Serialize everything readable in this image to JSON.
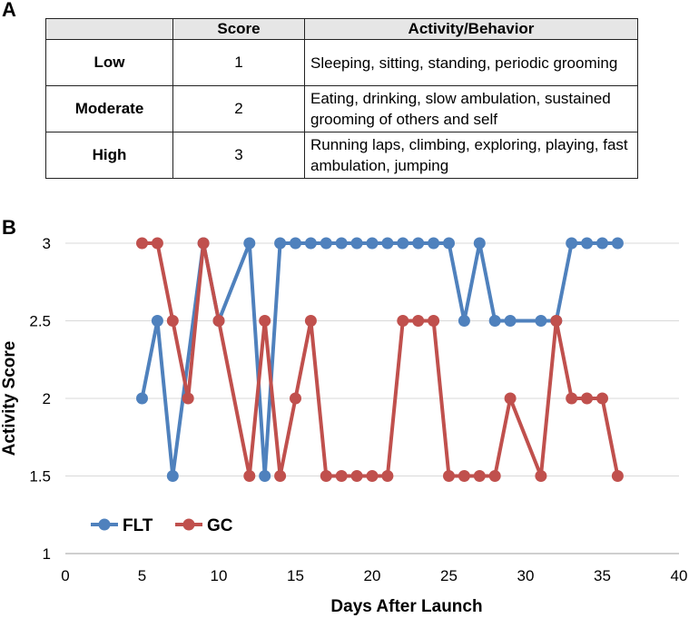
{
  "panel_a_label": "A",
  "panel_b_label": "B",
  "table": {
    "headers": [
      "",
      "Score",
      "Activity/Behavior"
    ],
    "rows": [
      {
        "level": "Low",
        "score": "1",
        "activity": "Sleeping, sitting, standing, periodic grooming"
      },
      {
        "level": "Moderate",
        "score": "2",
        "activity": "Eating, drinking, slow ambulation, sustained grooming of others and self"
      },
      {
        "level": "High",
        "score": "3",
        "activity": "Running laps, climbing, exploring, playing, fast ambulation, jumping"
      }
    ]
  },
  "chart_data": {
    "type": "line",
    "title": "",
    "xlabel": "Days After Launch",
    "ylabel": "Activity Score",
    "xlim": [
      0,
      40
    ],
    "ylim": [
      1,
      3
    ],
    "xticks": [
      0,
      5,
      10,
      15,
      20,
      25,
      30,
      35,
      40
    ],
    "yticks": [
      1,
      1.5,
      2,
      2.5,
      3
    ],
    "grid": "horizontal",
    "legend": "bottom-left",
    "series": [
      {
        "name": "FLT",
        "color": "#4f81bd",
        "x": [
          5,
          6,
          7,
          9,
          10,
          12,
          13,
          14,
          15,
          16,
          17,
          18,
          19,
          20,
          21,
          22,
          23,
          24,
          25,
          26,
          27,
          28,
          29,
          31,
          32,
          33,
          34,
          35,
          36
        ],
        "y": [
          2,
          2.5,
          1.5,
          3,
          2.5,
          3,
          1.5,
          3,
          3,
          3,
          3,
          3,
          3,
          3,
          3,
          3,
          3,
          3,
          3,
          2.5,
          3,
          2.5,
          2.5,
          2.5,
          2.5,
          3,
          3,
          3,
          3
        ]
      },
      {
        "name": "GC",
        "color": "#c0504d",
        "x": [
          5,
          6,
          7,
          8,
          9,
          10,
          12,
          13,
          14,
          15,
          16,
          17,
          18,
          19,
          20,
          21,
          22,
          23,
          24,
          25,
          26,
          27,
          28,
          29,
          31,
          32,
          33,
          34,
          35,
          36
        ],
        "y": [
          3,
          3,
          2.5,
          2,
          3,
          2.5,
          1.5,
          2.5,
          1.5,
          2,
          2.5,
          1.5,
          1.5,
          1.5,
          1.5,
          1.5,
          2.5,
          2.5,
          2.5,
          1.5,
          1.5,
          1.5,
          1.5,
          2,
          1.5,
          2.5,
          2,
          2,
          2,
          1.5
        ]
      }
    ]
  }
}
